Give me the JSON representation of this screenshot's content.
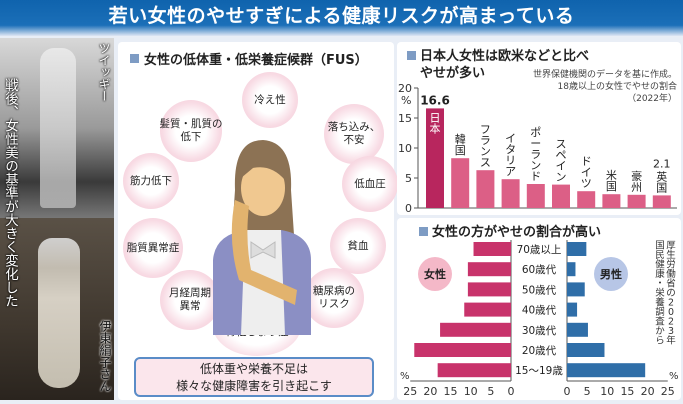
{
  "title": "若い女性のやせすぎによる健康リスクが高まっている",
  "photos": {
    "caption_top": "ツイッギー",
    "caption_main": "戦後、女性美の基準が大きく変化した",
    "caption_bottom": "伊東絹子さん"
  },
  "fus": {
    "heading": "女性の低体重・低栄養症候群（FUS）",
    "symptoms": [
      "冷え性",
      "髪質・肌質の\n低下",
      "落ち込み、\n不安",
      "筋力低下",
      "低血圧",
      "脂質異常症",
      "貧血",
      "月経周期\n異常",
      "糖尿病の\nリスク",
      "骨密度の低下・\n骨粗しょう症"
    ],
    "callout": "低体重や栄養不足は\n様々な健康障害を引き起こす"
  },
  "chart_data": [
    {
      "type": "bar",
      "title": "日本人女性は欧米などと比べやせが多い",
      "note": [
        "世界保健機関のデータを基に作成。",
        "18歳以上の女性でやせの割合",
        "（2022年）"
      ],
      "ylabel": "%",
      "ylim": [
        0,
        20
      ],
      "yticks": [
        0,
        5,
        10,
        15,
        20
      ],
      "categories": [
        "日本",
        "韓国",
        "フランス",
        "イタリア",
        "ポーランド",
        "スペイン",
        "ドイツ",
        "米国",
        "豪州",
        "英国"
      ],
      "values": [
        16.6,
        8.3,
        6.3,
        4.8,
        4.0,
        3.9,
        2.8,
        2.3,
        2.2,
        2.1
      ],
      "data_labels": {
        "日本": "16.6",
        "英国": "2.1"
      },
      "colors": {
        "highlight": "#b8265e",
        "bar": "#dc5f86"
      },
      "grid": false
    },
    {
      "type": "bar",
      "orientation": "horizontal-butterfly",
      "title": "女性の方がやせの割合が高い",
      "source": "厚生労働省の2023年国民健康・栄養調査から",
      "categories": [
        "70歳以上",
        "60歳代",
        "50歳代",
        "40歳代",
        "30歳代",
        "20歳代",
        "15〜19歳"
      ],
      "series": [
        {
          "name": "女性",
          "values": [
            9.3,
            10.7,
            10.7,
            11.6,
            17.6,
            24.0,
            18.2
          ],
          "color": "#c8336b"
        },
        {
          "name": "男性",
          "values": [
            4.8,
            2.1,
            4.4,
            2.5,
            5.2,
            9.3,
            19.4
          ],
          "color": "#2f6ea8"
        }
      ],
      "xlim": [
        0,
        25
      ],
      "xticks": [
        0,
        5,
        10,
        15,
        20,
        25
      ],
      "xlabel": "%",
      "grid": false
    }
  ]
}
